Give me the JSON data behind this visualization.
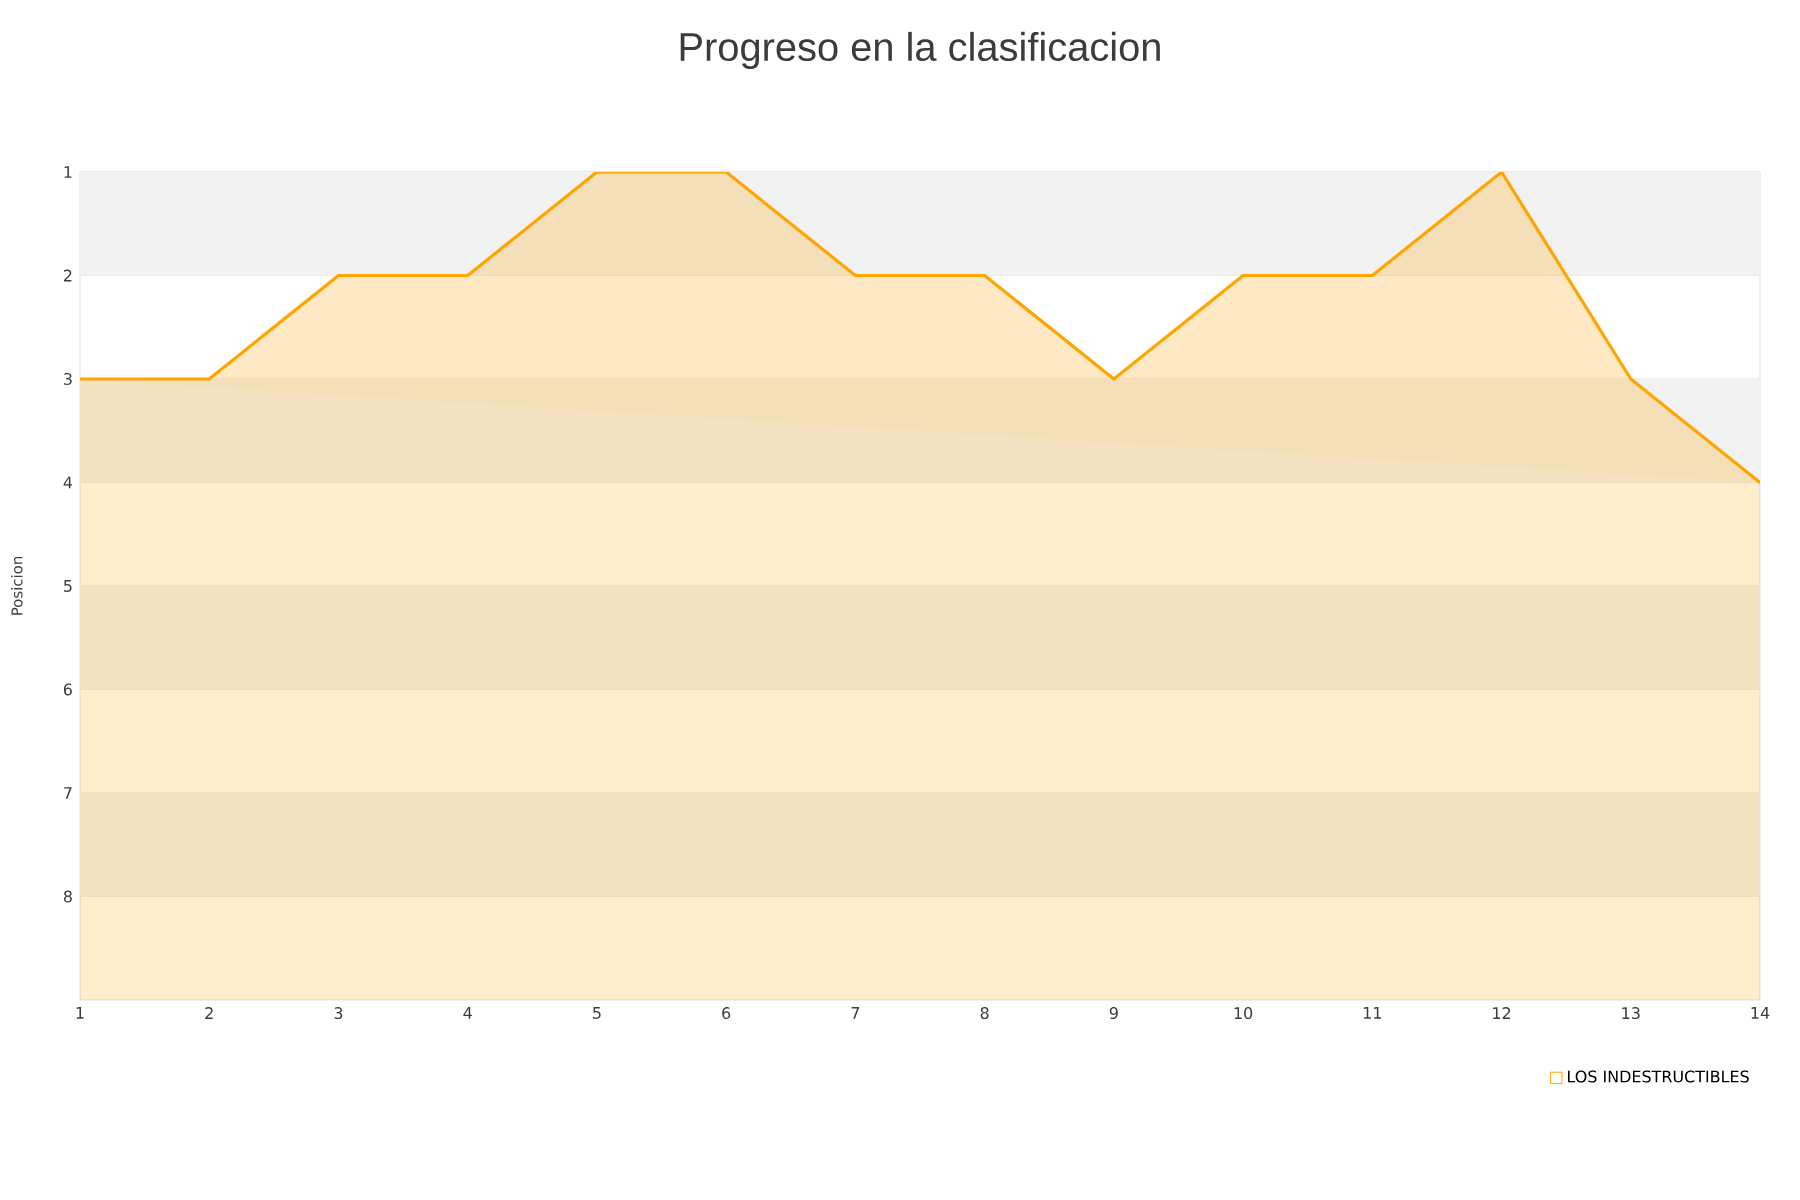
{
  "chart_data": {
    "type": "area",
    "title": "Progreso en la clasificacion",
    "ylabel": "Posicion",
    "x": [
      1,
      2,
      3,
      4,
      5,
      6,
      7,
      8,
      9,
      10,
      11,
      12,
      13,
      14
    ],
    "series": [
      {
        "name": "LOS INDESTRUCTIBLES",
        "color": "#ffa500",
        "values": [
          3,
          3,
          2,
          2,
          1,
          1,
          2,
          2,
          3,
          2,
          2,
          1,
          3,
          4
        ]
      }
    ],
    "xlim": [
      1,
      14
    ],
    "xticks": [
      1,
      2,
      3,
      4,
      5,
      6,
      7,
      8,
      9,
      10,
      11,
      12,
      13,
      14
    ],
    "ylim": [
      9,
      1
    ],
    "yticks": [
      1,
      2,
      3,
      4,
      5,
      6,
      7,
      8
    ],
    "bands": [
      {
        "axis": "y",
        "from": 1,
        "to": 2,
        "color": "#f2f2f2"
      },
      {
        "axis": "y",
        "from": 3,
        "to": 4,
        "color": "#f2f2f2"
      },
      {
        "axis": "y",
        "from": 5,
        "to": 6,
        "color": "#f2f2f2"
      },
      {
        "axis": "y",
        "from": 7,
        "to": 8,
        "color": "#f2f2f2"
      }
    ],
    "grid": "y",
    "legend": "bottom right",
    "marker": "none",
    "line_style": "solid"
  }
}
